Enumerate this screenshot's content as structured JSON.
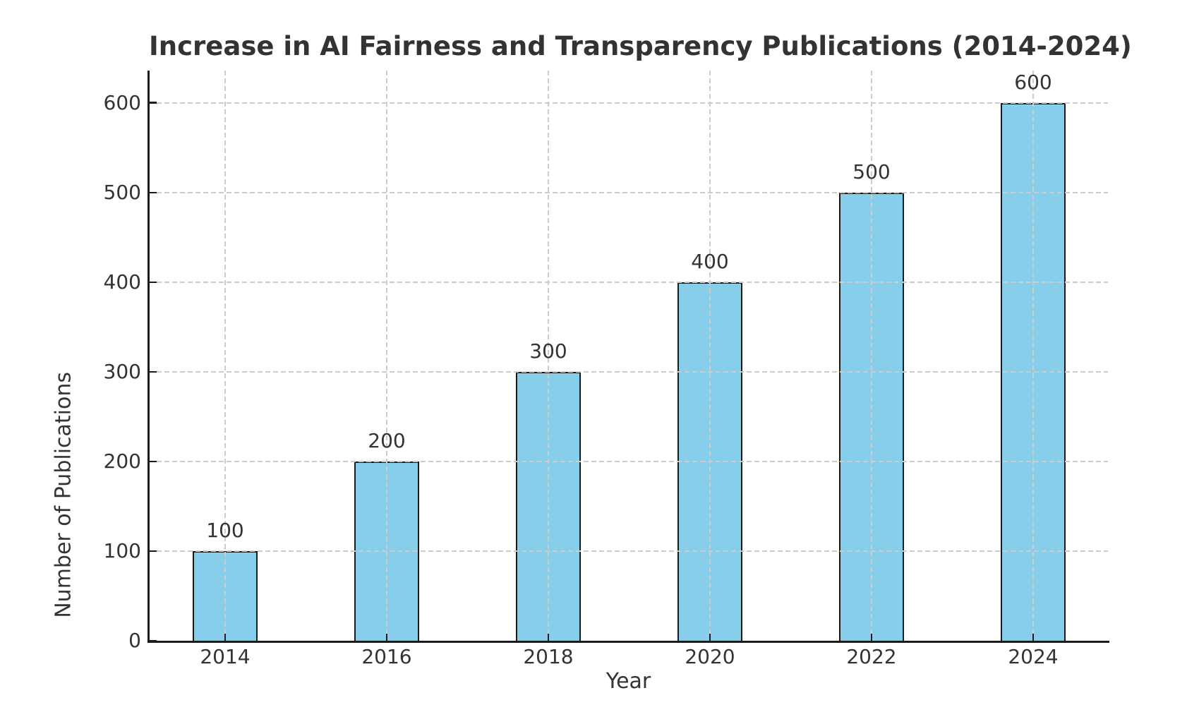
{
  "title": "Increase in AI Fairness and Transparency Publications (2014-2024)",
  "chart_data": {
    "type": "bar",
    "title": "Increase in AI Fairness and Transparency Publications (2014-2024)",
    "xlabel": "Year",
    "ylabel": "Number of Publications",
    "categories": [
      "2014",
      "2016",
      "2018",
      "2020",
      "2022",
      "2024"
    ],
    "values": [
      100,
      200,
      300,
      400,
      500,
      600
    ],
    "bar_value_labels": [
      "100",
      "200",
      "300",
      "400",
      "500",
      "600"
    ],
    "yticks": [
      0,
      100,
      200,
      300,
      400,
      500,
      600
    ],
    "ylim": [
      0,
      636
    ],
    "grid": "dashed gridlines on both axes, drawn above bars",
    "legend": "none",
    "colors": {
      "bar_fill": "#87CEEB",
      "bar_edge": "#1a1a1a",
      "grid": "#cccccc",
      "text": "#333333",
      "spine": "#1c1c1c",
      "background": "#ffffff"
    }
  }
}
